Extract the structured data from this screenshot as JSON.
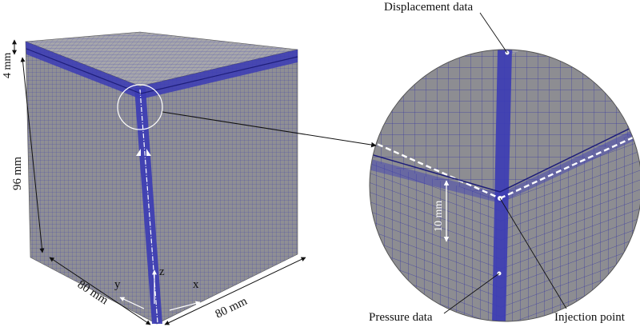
{
  "labels": {
    "height_top": "4 mm",
    "height_main": "96 mm",
    "width_left": "80 mm",
    "width_right": "80 mm",
    "axis_y": "y",
    "axis_x": "x",
    "axis_z": "z",
    "zoom_dim": "10 mm",
    "displacement": "Displacement data",
    "pressure": "Pressure data",
    "injection": "Injection point"
  },
  "colors": {
    "mesh_fill": "#8f8f94",
    "mesh_top": "#a6a6ab",
    "mesh_line": "#3a3aa0",
    "band": "#3b3bb5",
    "band_dark": "#23238a",
    "annotation": "#111111"
  }
}
